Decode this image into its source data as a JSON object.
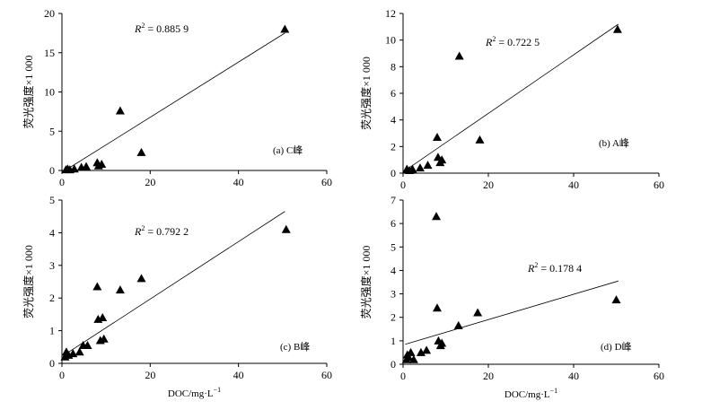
{
  "chart_data": [
    {
      "type": "scatter",
      "panel_label": "(a) C峰",
      "r2_label": "R",
      "r2_sup": "2",
      "r2_value": " = 0.885 9",
      "ylabel": "荧光强度×1 000",
      "xlabel": "",
      "xlim": [
        0,
        60
      ],
      "ylim": [
        0,
        20
      ],
      "xticks": [
        "0",
        "20",
        "40",
        "60"
      ],
      "yticks": [
        "0",
        "5",
        "10",
        "15",
        "20"
      ],
      "fit_line": {
        "x": [
          1,
          50.5
        ],
        "y": [
          0.1,
          17.5
        ]
      },
      "points": [
        {
          "x": 0.9,
          "y": 0.1
        },
        {
          "x": 1.3,
          "y": 0.2
        },
        {
          "x": 1.8,
          "y": 0.1
        },
        {
          "x": 2.8,
          "y": 0.2
        },
        {
          "x": 4.4,
          "y": 0.4
        },
        {
          "x": 5.5,
          "y": 0.5
        },
        {
          "x": 8.0,
          "y": 1.0
        },
        {
          "x": 8.3,
          "y": 0.6
        },
        {
          "x": 9.0,
          "y": 0.8
        },
        {
          "x": 13.2,
          "y": 7.6
        },
        {
          "x": 18.0,
          "y": 2.3
        },
        {
          "x": 50.5,
          "y": 18.0
        }
      ]
    },
    {
      "type": "scatter",
      "panel_label": "(b) A峰",
      "r2_label": "R",
      "r2_sup": "2",
      "r2_value": " = 0.722 5",
      "ylabel": "荧光强度×1 000",
      "xlabel": "",
      "xlim": [
        0,
        60
      ],
      "ylim": [
        0,
        12
      ],
      "xticks": [
        "0",
        "20",
        "40",
        "60"
      ],
      "yticks": [
        "0",
        "2",
        "4",
        "6",
        "8",
        "10",
        "12"
      ],
      "fit_line": {
        "x": [
          0.5,
          50.5
        ],
        "y": [
          0.2,
          11.2
        ]
      },
      "points": [
        {
          "x": 0.9,
          "y": 0.3
        },
        {
          "x": 1.5,
          "y": 0.2
        },
        {
          "x": 2.2,
          "y": 0.3
        },
        {
          "x": 4.0,
          "y": 0.4
        },
        {
          "x": 5.8,
          "y": 0.6
        },
        {
          "x": 8.0,
          "y": 2.7
        },
        {
          "x": 8.2,
          "y": 1.2
        },
        {
          "x": 8.7,
          "y": 0.8
        },
        {
          "x": 9.1,
          "y": 1.0
        },
        {
          "x": 13.2,
          "y": 8.8
        },
        {
          "x": 18.0,
          "y": 2.5
        },
        {
          "x": 50.3,
          "y": 10.8
        }
      ]
    },
    {
      "type": "scatter",
      "panel_label": "(c) B峰",
      "r2_label": "R",
      "r2_sup": "2",
      "r2_value": " = 0.792 2",
      "ylabel": "荧光强度×1 000",
      "xlabel": "DOC/mg·L",
      "xlabel_sup": "−1",
      "xlim": [
        0,
        60
      ],
      "ylim": [
        0,
        5
      ],
      "xticks": [
        "0",
        "20",
        "40",
        "60"
      ],
      "yticks": [
        "0",
        "1",
        "2",
        "3",
        "4",
        "5"
      ],
      "fit_line": {
        "x": [
          1,
          50.5
        ],
        "y": [
          0.3,
          4.65
        ]
      },
      "points": [
        {
          "x": 0.7,
          "y": 0.2
        },
        {
          "x": 1.0,
          "y": 0.35
        },
        {
          "x": 1.5,
          "y": 0.25
        },
        {
          "x": 2.5,
          "y": 0.3
        },
        {
          "x": 4.0,
          "y": 0.35
        },
        {
          "x": 4.8,
          "y": 0.55
        },
        {
          "x": 5.8,
          "y": 0.55
        },
        {
          "x": 8.0,
          "y": 2.35
        },
        {
          "x": 8.2,
          "y": 1.35
        },
        {
          "x": 8.7,
          "y": 0.7
        },
        {
          "x": 9.2,
          "y": 1.4
        },
        {
          "x": 9.5,
          "y": 0.75
        },
        {
          "x": 13.2,
          "y": 2.25
        },
        {
          "x": 18.0,
          "y": 2.6
        },
        {
          "x": 50.8,
          "y": 4.1
        }
      ]
    },
    {
      "type": "scatter",
      "panel_label": "(d) D峰",
      "r2_label": "R",
      "r2_sup": "2",
      "r2_value": " = 0.178 4",
      "ylabel": "荧光强度×1 000",
      "xlabel": "DOC/mg·L",
      "xlabel_sup": "−1",
      "xlim": [
        0,
        60
      ],
      "ylim": [
        0,
        7
      ],
      "xticks": [
        "0",
        "20",
        "40",
        "60"
      ],
      "yticks": [
        "0",
        "1",
        "2",
        "3",
        "4",
        "5",
        "6",
        "7"
      ],
      "fit_line": {
        "x": [
          0.5,
          50.5
        ],
        "y": [
          0.85,
          3.55
        ]
      },
      "points": [
        {
          "x": 0.8,
          "y": 0.2
        },
        {
          "x": 1.0,
          "y": 0.4
        },
        {
          "x": 1.3,
          "y": 0.3
        },
        {
          "x": 1.8,
          "y": 0.5
        },
        {
          "x": 2.5,
          "y": 0.2
        },
        {
          "x": 4.2,
          "y": 0.5
        },
        {
          "x": 5.5,
          "y": 0.6
        },
        {
          "x": 7.8,
          "y": 6.3
        },
        {
          "x": 8.0,
          "y": 2.4
        },
        {
          "x": 8.3,
          "y": 1.0
        },
        {
          "x": 8.8,
          "y": 0.8
        },
        {
          "x": 9.1,
          "y": 0.9
        },
        {
          "x": 13.0,
          "y": 1.65
        },
        {
          "x": 17.5,
          "y": 2.2
        },
        {
          "x": 50.0,
          "y": 2.75
        }
      ]
    }
  ]
}
